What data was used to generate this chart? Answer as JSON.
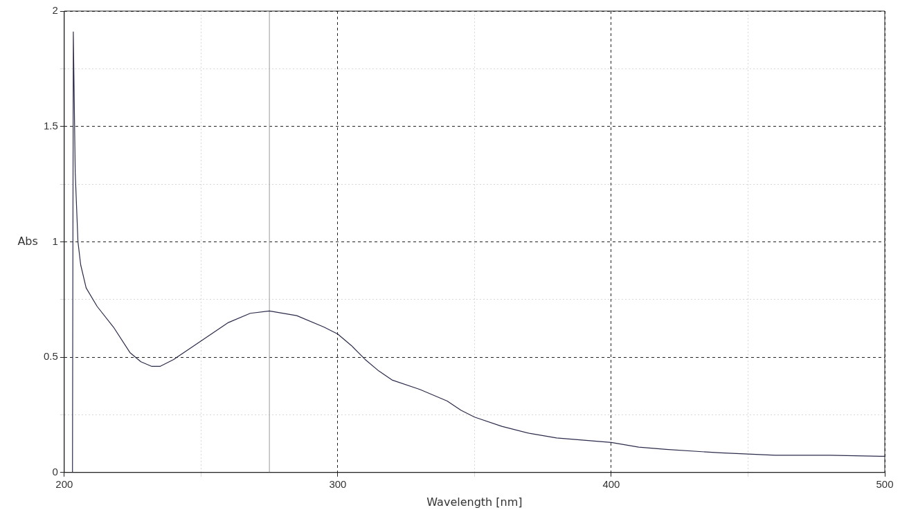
{
  "chart_data": {
    "type": "line",
    "xlabel": "Wavelength [nm]",
    "ylabel": "Abs",
    "x": [
      203,
      203.3,
      204,
      205,
      206,
      208,
      212,
      218,
      224,
      228,
      232,
      235,
      240,
      250,
      260,
      268,
      275,
      285,
      295,
      300,
      305,
      310,
      315,
      320,
      330,
      340,
      345,
      350,
      360,
      370,
      380,
      390,
      400,
      410,
      420,
      440,
      460,
      480,
      500
    ],
    "series": [
      {
        "color": "#2a2a4a",
        "values": [
          0,
          1.91,
          1.3,
          1.0,
          0.9,
          0.8,
          0.72,
          0.63,
          0.52,
          0.48,
          0.46,
          0.46,
          0.49,
          0.57,
          0.65,
          0.69,
          0.7,
          0.68,
          0.63,
          0.6,
          0.55,
          0.49,
          0.44,
          0.4,
          0.36,
          0.31,
          0.27,
          0.24,
          0.2,
          0.17,
          0.15,
          0.14,
          0.13,
          0.11,
          0.1,
          0.085,
          0.075,
          0.075,
          0.07
        ]
      }
    ],
    "xlim": [
      200,
      500
    ],
    "xticks": [
      200,
      {
        "value": 250,
        "label": null
      },
      300,
      {
        "value": 350,
        "label": null
      },
      400,
      {
        "value": 450,
        "label": null
      },
      500
    ],
    "ylim": [
      0,
      2
    ],
    "yticks": [
      0,
      {
        "value": 0.25,
        "label": null
      },
      0.5,
      {
        "value": 0.75,
        "label": null
      },
      1,
      {
        "value": 1.25,
        "label": null
      },
      1.5,
      {
        "value": 1.75,
        "label": null
      },
      2
    ],
    "grid": true,
    "marker": "none",
    "line_style": "solid",
    "ref_lines": [
      {
        "axis": "x",
        "value": 275,
        "color": "#999999"
      }
    ]
  }
}
